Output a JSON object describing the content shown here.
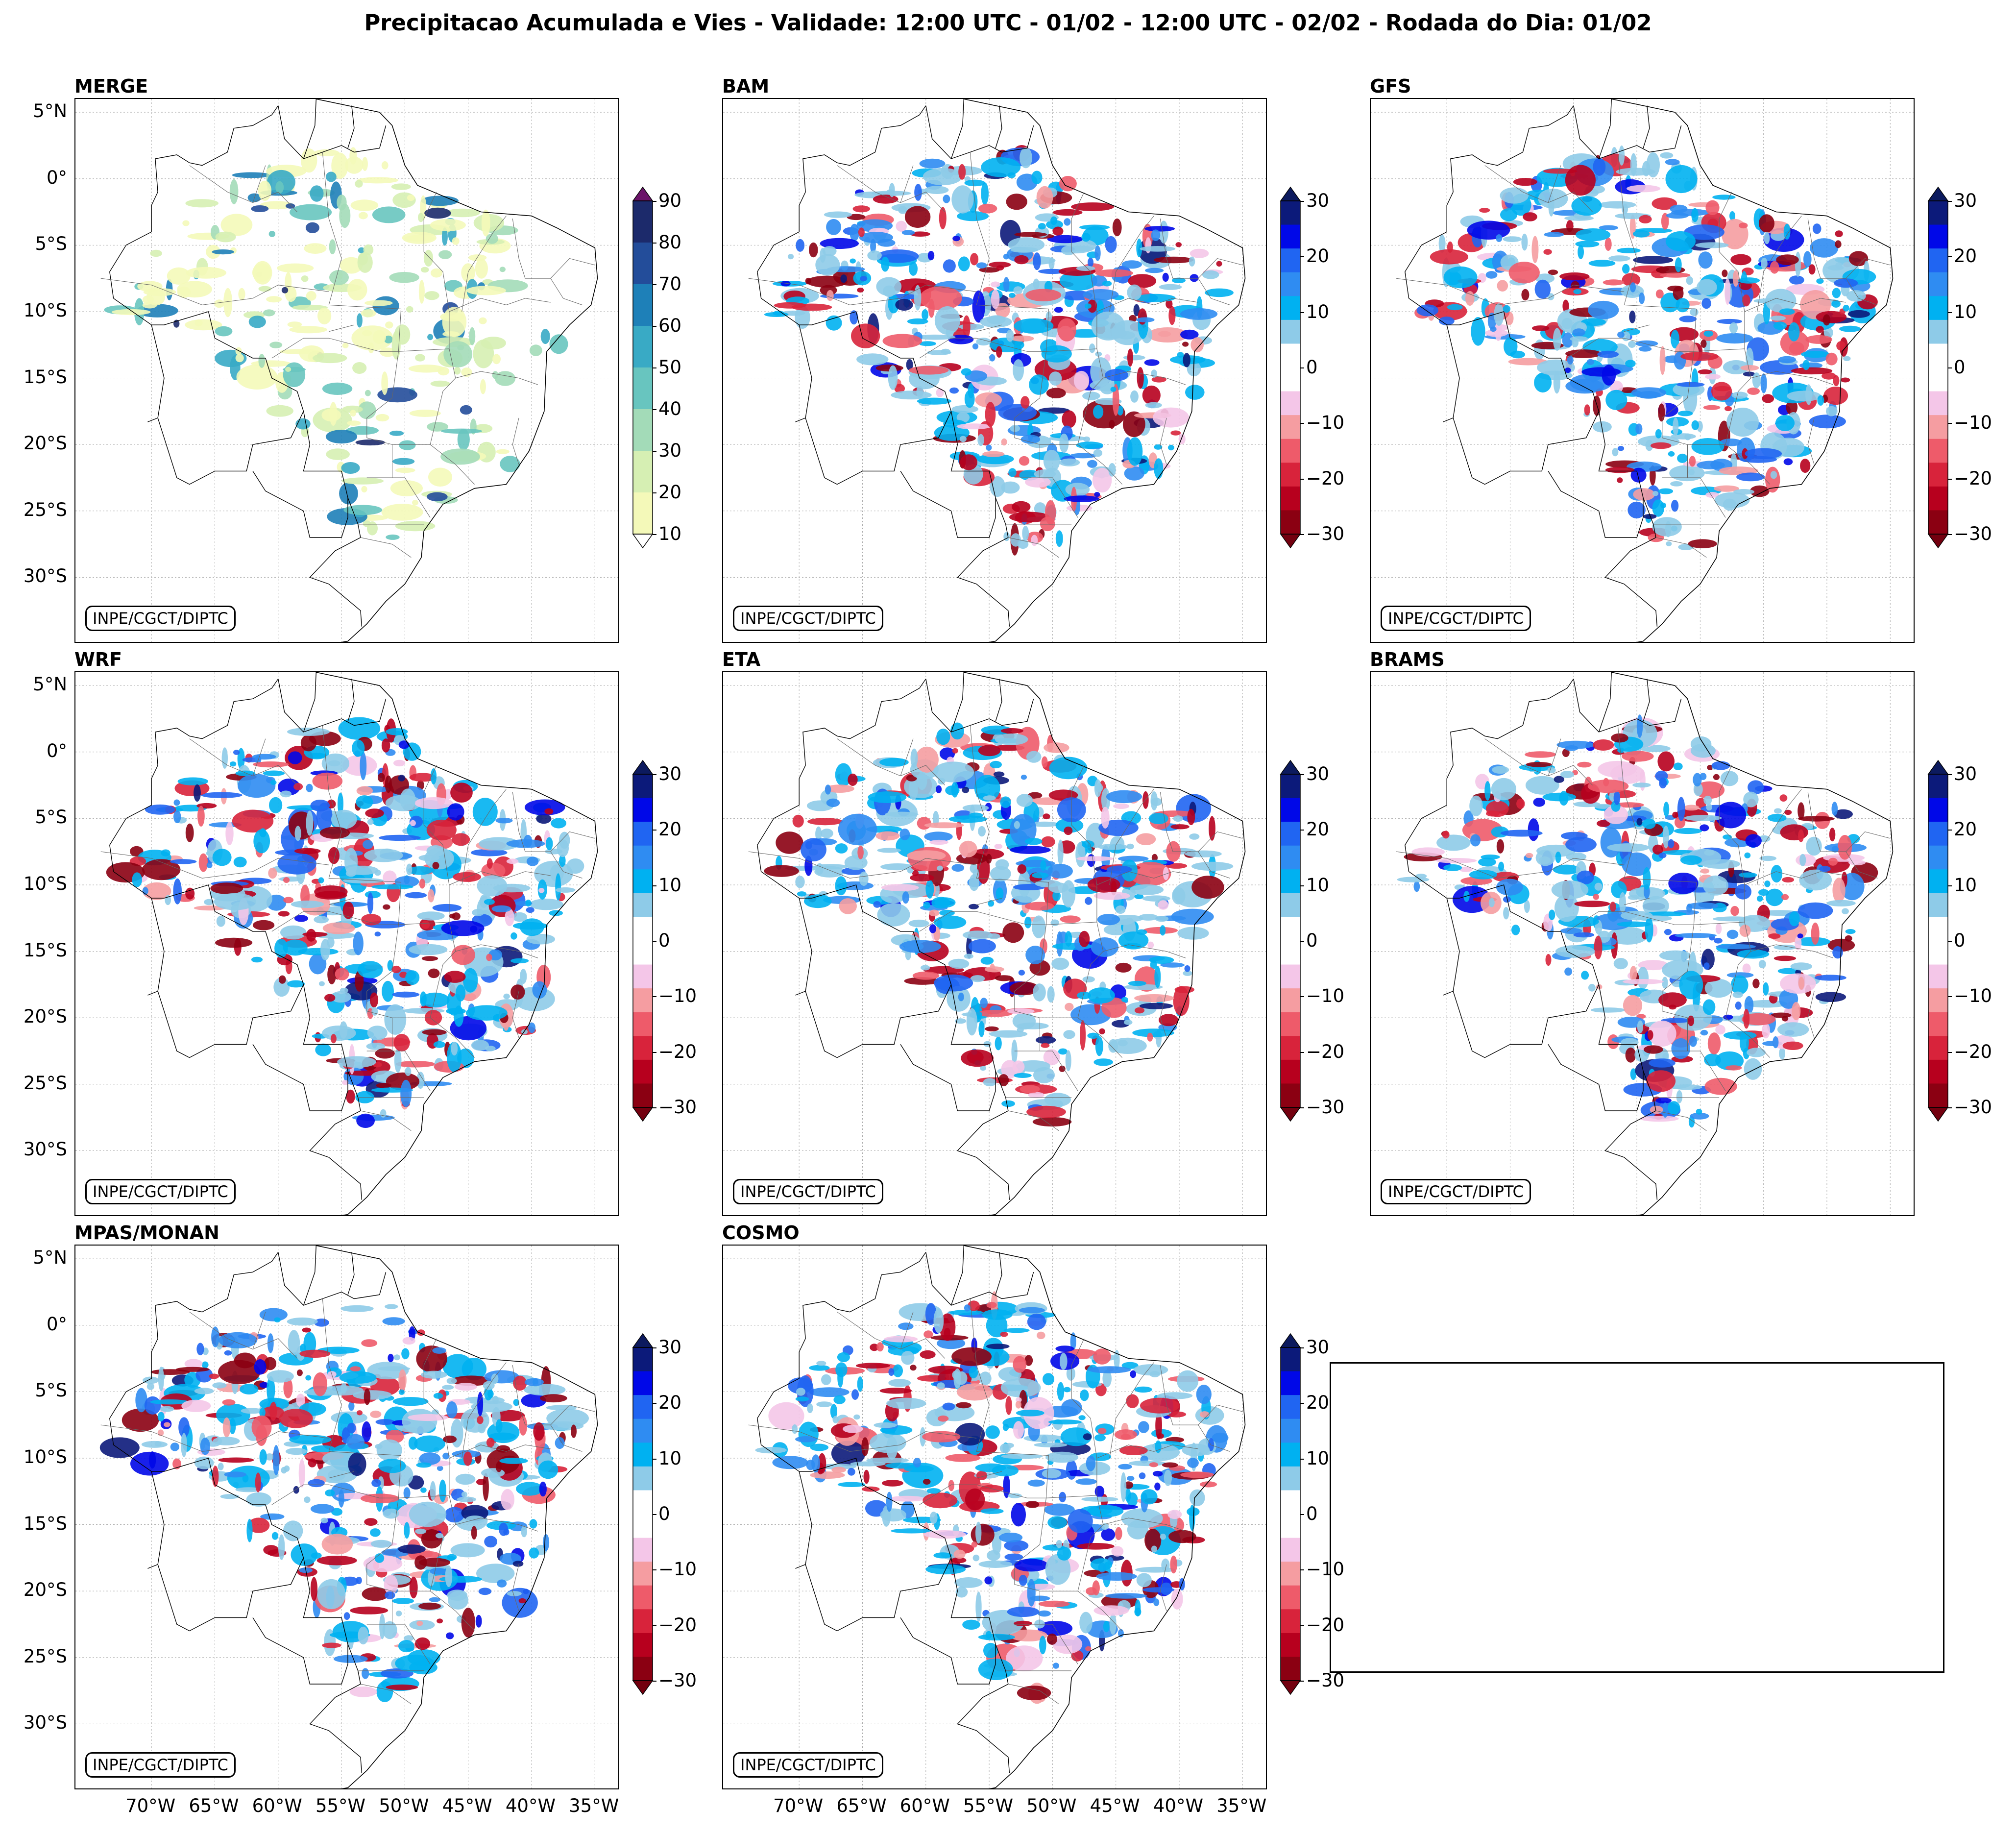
{
  "title": "Precipitacao Acumulada e Vies - Validade: 12:00 UTC - 01/02 - 12:00 UTC - 02/02 - Rodada do Dia: 01/02",
  "credit": "INPE/CGCT/DIPTC",
  "lat_labels": [
    "5°N",
    "0°",
    "5°S",
    "10°S",
    "15°S",
    "20°S",
    "25°S",
    "30°S"
  ],
  "lon_labels": [
    "70°W",
    "65°W",
    "60°W",
    "55°W",
    "50°W",
    "45°W",
    "40°W",
    "35°W"
  ],
  "precip_colorbar": {
    "ticks": [
      "10",
      "20",
      "30",
      "40",
      "50",
      "60",
      "70",
      "80",
      "90"
    ],
    "colors": [
      "#f4f9b9",
      "#d6efb3",
      "#a3dbb8",
      "#68c5bf",
      "#39aac5",
      "#1e80b8",
      "#234d9a",
      "#1c2a6b",
      "#4a0d4f"
    ],
    "extend_over_color": "#6b1469",
    "extend_under_color": "#ffffff"
  },
  "bias_colorbar": {
    "ticks": [
      "30",
      "20",
      "10",
      "0",
      "−10",
      "−20",
      "−30"
    ],
    "colors": [
      "#8b0012",
      "#b7001e",
      "#d8233b",
      "#ee5b6a",
      "#f59da1",
      "#f4c6e8",
      "#ffffff",
      "#ffffff",
      "#8ecbe8",
      "#00b1f1",
      "#2f8cf2",
      "#2065f2",
      "#0008e8",
      "#0c1a7a"
    ],
    "extend_over_color": "#0c1a5e",
    "extend_under_color": "#73000f"
  },
  "panels": [
    {
      "name": "MERGE",
      "kind": "precip"
    },
    {
      "name": "BAM",
      "kind": "bias"
    },
    {
      "name": "GFS",
      "kind": "bias"
    },
    {
      "name": "WRF",
      "kind": "bias"
    },
    {
      "name": "ETA",
      "kind": "bias"
    },
    {
      "name": "BRAMS",
      "kind": "bias"
    },
    {
      "name": "MPAS/MONAN",
      "kind": "bias"
    },
    {
      "name": "COSMO",
      "kind": "bias"
    }
  ]
}
